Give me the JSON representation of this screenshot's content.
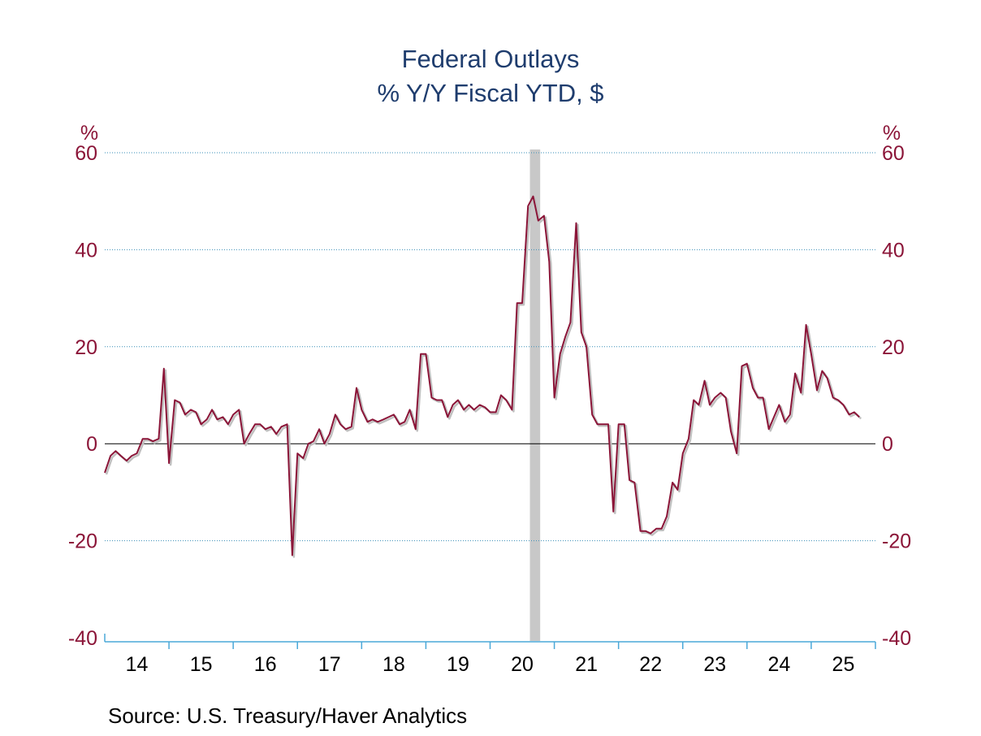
{
  "chart_data": {
    "type": "line",
    "title": "Federal Outlays",
    "subtitle": "% Y/Y   Fiscal YTD, $",
    "ylabel_left": "%",
    "ylabel_right": "%",
    "ylim": [
      -40,
      60
    ],
    "yticks": [
      60,
      40,
      20,
      0,
      -20,
      -40
    ],
    "xlim": [
      2013.5,
      2025.5
    ],
    "xtick_labels": [
      "14",
      "15",
      "16",
      "17",
      "18",
      "19",
      "20",
      "21",
      "22",
      "23",
      "24",
      "25"
    ],
    "grid": true,
    "recession_band": [
      2020.12,
      2020.28
    ],
    "series": [
      {
        "color": "#8b1538",
        "shadow_color": "#c0c0c0",
        "points": [
          [
            2013.5,
            -6.0
          ],
          [
            2013.59,
            -2.5
          ],
          [
            2013.67,
            -1.5
          ],
          [
            2013.75,
            -2.5
          ],
          [
            2013.84,
            -3.5
          ],
          [
            2013.92,
            -2.5
          ],
          [
            2014.0,
            -2.0
          ],
          [
            2014.09,
            1.0
          ],
          [
            2014.17,
            1.0
          ],
          [
            2014.25,
            0.5
          ],
          [
            2014.34,
            1.0
          ],
          [
            2014.42,
            15.5
          ],
          [
            2014.5,
            -4.0
          ],
          [
            2014.59,
            9.0
          ],
          [
            2014.67,
            8.5
          ],
          [
            2014.75,
            6.0
          ],
          [
            2014.84,
            7.0
          ],
          [
            2014.92,
            6.5
          ],
          [
            2015.0,
            4.0
          ],
          [
            2015.09,
            5.0
          ],
          [
            2015.17,
            7.0
          ],
          [
            2015.25,
            5.0
          ],
          [
            2015.34,
            5.5
          ],
          [
            2015.42,
            4.0
          ],
          [
            2015.5,
            6.0
          ],
          [
            2015.59,
            7.0
          ],
          [
            2015.67,
            0.0
          ],
          [
            2015.75,
            2.0
          ],
          [
            2015.84,
            4.0
          ],
          [
            2015.92,
            4.0
          ],
          [
            2016.0,
            3.0
          ],
          [
            2016.09,
            3.5
          ],
          [
            2016.17,
            2.0
          ],
          [
            2016.25,
            3.5
          ],
          [
            2016.34,
            4.0
          ],
          [
            2016.42,
            -23.0
          ],
          [
            2016.5,
            -2.0
          ],
          [
            2016.59,
            -3.0
          ],
          [
            2016.67,
            0.0
          ],
          [
            2016.75,
            0.5
          ],
          [
            2016.84,
            3.0
          ],
          [
            2016.92,
            0.0
          ],
          [
            2017.0,
            2.0
          ],
          [
            2017.09,
            6.0
          ],
          [
            2017.17,
            4.0
          ],
          [
            2017.25,
            3.0
          ],
          [
            2017.34,
            3.5
          ],
          [
            2017.42,
            11.5
          ],
          [
            2017.5,
            7.0
          ],
          [
            2017.59,
            4.5
          ],
          [
            2017.67,
            5.0
          ],
          [
            2017.75,
            4.5
          ],
          [
            2017.84,
            5.0
          ],
          [
            2017.92,
            5.5
          ],
          [
            2018.0,
            6.0
          ],
          [
            2018.09,
            4.0
          ],
          [
            2018.17,
            4.5
          ],
          [
            2018.25,
            7.0
          ],
          [
            2018.34,
            3.0
          ],
          [
            2018.42,
            18.5
          ],
          [
            2018.5,
            18.5
          ],
          [
            2018.59,
            9.5
          ],
          [
            2018.67,
            9.0
          ],
          [
            2018.75,
            9.0
          ],
          [
            2018.84,
            5.5
          ],
          [
            2018.92,
            8.0
          ],
          [
            2019.0,
            9.0
          ],
          [
            2019.09,
            7.0
          ],
          [
            2019.17,
            8.0
          ],
          [
            2019.25,
            7.0
          ],
          [
            2019.34,
            8.0
          ],
          [
            2019.42,
            7.5
          ],
          [
            2019.5,
            6.5
          ],
          [
            2019.59,
            6.5
          ],
          [
            2019.67,
            10.0
          ],
          [
            2019.75,
            9.0
          ],
          [
            2019.84,
            7.0
          ],
          [
            2019.92,
            29.0
          ],
          [
            2020.0,
            29.0
          ],
          [
            2020.09,
            49.0
          ],
          [
            2020.17,
            51.0
          ],
          [
            2020.25,
            46.0
          ],
          [
            2020.34,
            47.0
          ],
          [
            2020.42,
            37.5
          ],
          [
            2020.5,
            9.5
          ],
          [
            2020.59,
            18.5
          ],
          [
            2020.67,
            22.0
          ],
          [
            2020.75,
            25.0
          ],
          [
            2020.84,
            45.5
          ],
          [
            2020.92,
            23.0
          ],
          [
            2021.0,
            20.0
          ],
          [
            2021.09,
            6.0
          ],
          [
            2021.17,
            4.0
          ],
          [
            2021.25,
            4.0
          ],
          [
            2021.34,
            4.0
          ],
          [
            2021.42,
            -14.0
          ],
          [
            2021.5,
            4.0
          ],
          [
            2021.59,
            4.0
          ],
          [
            2021.67,
            -7.5
          ],
          [
            2021.75,
            -8.0
          ],
          [
            2021.84,
            -18.0
          ],
          [
            2021.92,
            -18.0
          ],
          [
            2022.0,
            -18.5
          ],
          [
            2022.09,
            -17.5
          ],
          [
            2022.17,
            -17.5
          ],
          [
            2022.25,
            -15.0
          ],
          [
            2022.34,
            -8.0
          ],
          [
            2022.42,
            -9.5
          ],
          [
            2022.5,
            -2.0
          ],
          [
            2022.59,
            1.0
          ],
          [
            2022.67,
            9.0
          ],
          [
            2022.75,
            8.0
          ],
          [
            2022.84,
            13.0
          ],
          [
            2022.92,
            8.0
          ],
          [
            2023.0,
            9.5
          ],
          [
            2023.09,
            10.5
          ],
          [
            2023.17,
            9.5
          ],
          [
            2023.25,
            2.5
          ],
          [
            2023.34,
            -2.0
          ],
          [
            2023.42,
            16.0
          ],
          [
            2023.5,
            16.5
          ],
          [
            2023.59,
            11.5
          ],
          [
            2023.67,
            9.5
          ],
          [
            2023.75,
            9.5
          ],
          [
            2023.84,
            3.0
          ],
          [
            2023.92,
            5.5
          ],
          [
            2024.0,
            8.0
          ],
          [
            2024.09,
            4.5
          ],
          [
            2024.17,
            6.0
          ],
          [
            2024.25,
            14.5
          ],
          [
            2024.34,
            10.5
          ],
          [
            2024.42,
            24.5
          ],
          [
            2024.5,
            18.5
          ],
          [
            2024.59,
            11.0
          ],
          [
            2024.67,
            15.0
          ],
          [
            2024.75,
            13.5
          ],
          [
            2024.84,
            9.5
          ],
          [
            2024.92,
            9.0
          ],
          [
            2025.0,
            8.0
          ],
          [
            2025.09,
            6.0
          ],
          [
            2025.17,
            6.5
          ],
          [
            2025.25,
            5.5
          ]
        ]
      }
    ]
  },
  "source": "Source:  U.S. Treasury/Haver Analytics"
}
